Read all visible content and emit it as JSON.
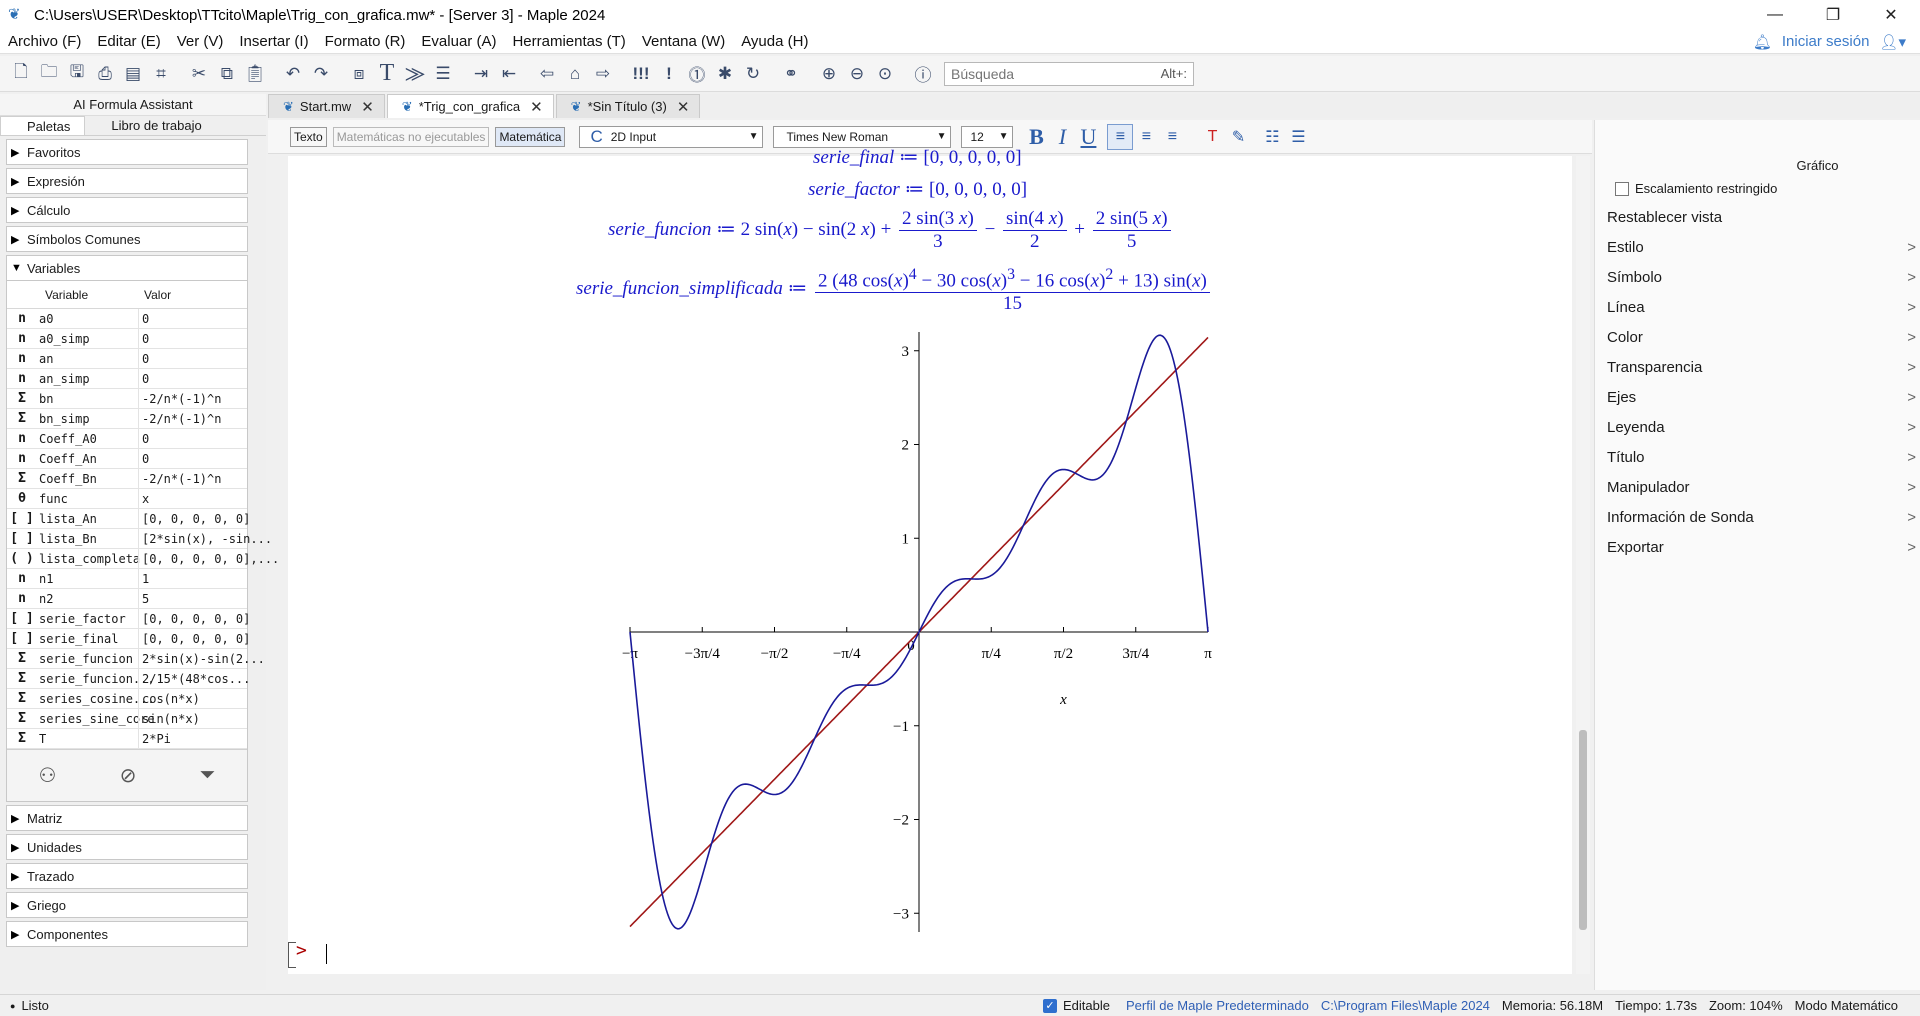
{
  "window": {
    "title": "C:\\Users\\USER\\Desktop\\TTcito\\Maple\\Trig_con_grafica.mw* - [Server 3] - Maple 2024",
    "minimize": "—",
    "restore": "❐",
    "close": "✕"
  },
  "menu": {
    "items": [
      "Archivo (F)",
      "Editar (E)",
      "Ver (V)",
      "Insertar (I)",
      "Formato (R)",
      "Evaluar (A)",
      "Herramientas (T)",
      "Ventana (W)",
      "Ayuda (H)"
    ],
    "signin": "Iniciar sesión"
  },
  "toolbar": {
    "search_placeholder": "Búsqueda",
    "search_shortcut": "Alt+:"
  },
  "left_panel": {
    "ai_assistant": "AI Formula Assistant",
    "tab_palettes": "Paletas",
    "tab_workbook": "Libro de trabajo",
    "palettes_top": [
      "Favoritos",
      "Expresión",
      "Cálculo",
      "Símbolos Comunes"
    ],
    "variables_header": "Variables",
    "col_variable": "Variable",
    "col_value": "Valor",
    "variables": [
      {
        "sym": "n",
        "name": "a0",
        "value": "0"
      },
      {
        "sym": "n",
        "name": "a0_simp",
        "value": "0"
      },
      {
        "sym": "n",
        "name": "an",
        "value": "0"
      },
      {
        "sym": "n",
        "name": "an_simp",
        "value": "0"
      },
      {
        "sym": "Σ",
        "name": "bn",
        "value": "-2/n*(-1)^n"
      },
      {
        "sym": "Σ",
        "name": "bn_simp",
        "value": "-2/n*(-1)^n"
      },
      {
        "sym": "n",
        "name": "Coeff_A0",
        "value": "0"
      },
      {
        "sym": "n",
        "name": "Coeff_An",
        "value": "0"
      },
      {
        "sym": "Σ",
        "name": "Coeff_Bn",
        "value": "-2/n*(-1)^n"
      },
      {
        "sym": "θ",
        "name": "func",
        "value": "x"
      },
      {
        "sym": "[ ]",
        "name": "lista_An",
        "value": "[0, 0, 0, 0, 0]"
      },
      {
        "sym": "[ ]",
        "name": "lista_Bn",
        "value": "[2*sin(x), -sin..."
      },
      {
        "sym": "( )",
        "name": "lista_completa",
        "value": "[0, 0, 0, 0, 0],..."
      },
      {
        "sym": "n",
        "name": "n1",
        "value": "1"
      },
      {
        "sym": "n",
        "name": "n2",
        "value": "5"
      },
      {
        "sym": "[ ]",
        "name": "serie_factor",
        "value": "[0, 0, 0, 0, 0]"
      },
      {
        "sym": "[ ]",
        "name": "serie_final",
        "value": "[0, 0, 0, 0, 0]"
      },
      {
        "sym": "Σ",
        "name": "serie_funcion",
        "value": "2*sin(x)-sin(2..."
      },
      {
        "sym": "Σ",
        "name": "serie_funcion...",
        "value": "2/15*(48*cos..."
      },
      {
        "sym": "Σ",
        "name": "series_cosine...",
        "value": "cos(n*x)"
      },
      {
        "sym": "Σ",
        "name": "series_sine_core",
        "value": "sin(n*x)"
      },
      {
        "sym": "Σ",
        "name": "T",
        "value": "2*Pi"
      }
    ],
    "palettes_bottom": [
      "Matriz",
      "Unidades",
      "Trazado",
      "Griego",
      "Componentes"
    ]
  },
  "doc_tabs": [
    {
      "label": "Start.mw",
      "active": false
    },
    {
      "label": "*Trig_con_grafica",
      "active": true
    },
    {
      "label": "*Sin Título (3)",
      "active": false
    }
  ],
  "format_bar": {
    "text_mode": "Texto",
    "nonexec_math": "Matemáticas no ejecutables",
    "math_mode": "Matemática",
    "input_style": "2D Input",
    "font": "Times New Roman",
    "font_size": "12"
  },
  "worksheet": {
    "line_final_name": "serie_final",
    "line_final_value": "[0, 0, 0, 0, 0]",
    "line_factor_name": "serie_factor",
    "line_factor_value": "[0, 0, 0, 0, 0]",
    "line_funcion_name": "serie_funcion",
    "line_simpl_name": "serie_funcion_simplificada",
    "assign_op": "≔",
    "prompt": ">"
  },
  "chart_data": {
    "type": "line",
    "title": "",
    "xlabel": "x",
    "ylabel": "",
    "xlim": [
      -3.1416,
      3.1416
    ],
    "ylim": [
      -3.2,
      3.2
    ],
    "x_ticks": [
      "−π",
      "−3π/4",
      "−π/2",
      "−π/4",
      "0",
      "π/4",
      "π/2",
      "3π/4",
      "π"
    ],
    "y_ticks": [
      "−3",
      "−2",
      "−1",
      "1",
      "2",
      "3"
    ],
    "series": [
      {
        "expression": "x",
        "color": "#a01818"
      },
      {
        "expression": "2 sin(x) − sin(2x) + 2 sin(3x)/3 − sin(4x)/2 + 2 sin(5x)/5",
        "color": "#1a1a9a"
      }
    ],
    "grid": false,
    "legend": "none"
  },
  "right_panel": {
    "title": "Gráfico",
    "constrained_scaling": "Escalamiento restringido",
    "reset_view": "Restablecer vista",
    "items": [
      "Estilo",
      "Símbolo",
      "Línea",
      "Color",
      "Transparencia",
      "Ejes",
      "Leyenda",
      "Título",
      "Manipulador",
      "Información de Sonda",
      "Exportar"
    ]
  },
  "status": {
    "ready": "Listo",
    "editable": "Editable",
    "profile": "Perfil de Maple Predeterminado",
    "path": "C:\\Program Files\\Maple 2024",
    "memory": "Memoria: 56.18M",
    "time": "Tiempo: 1.73s",
    "zoom": "Zoom: 104%",
    "mode": "Modo Matemático"
  }
}
